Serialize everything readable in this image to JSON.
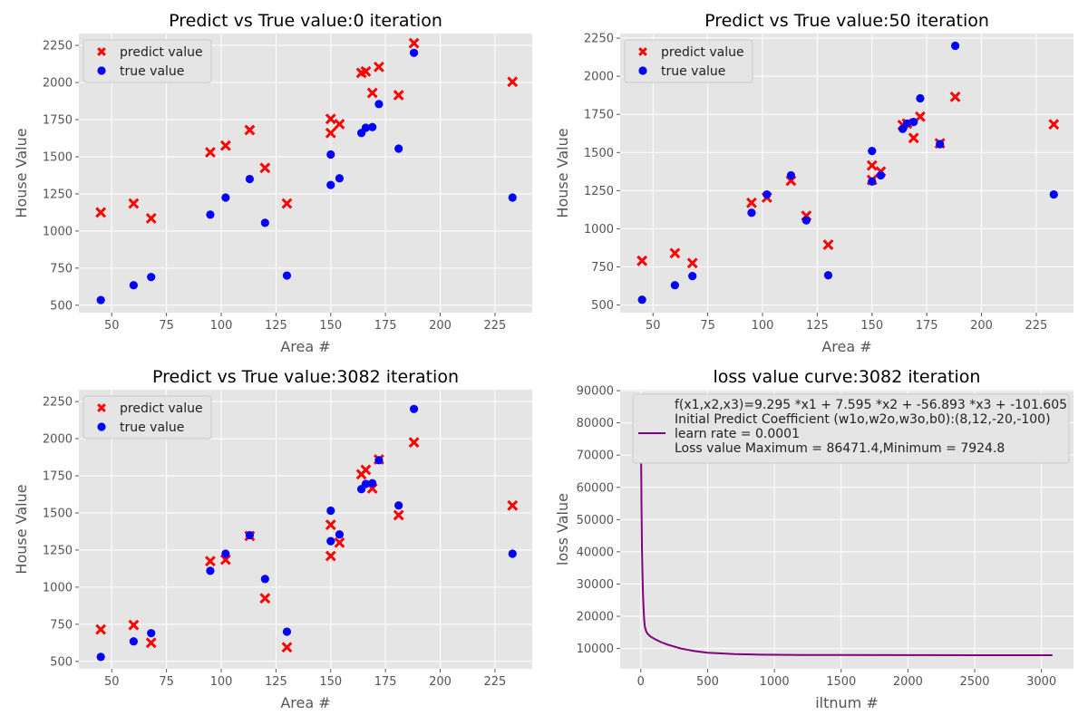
{
  "colors": {
    "predict": "#ff0000",
    "true": "#0000ff",
    "loss": "#800080",
    "background": "#e5e5e5",
    "grid": "#ffffff"
  },
  "chart_data": [
    {
      "type": "scatter",
      "title": "Predict vs True value:0 iteration",
      "xlabel": "Area #",
      "ylabel": "House Value",
      "xlim": [
        35,
        242
      ],
      "ylim": [
        450,
        2330
      ],
      "xticks": [
        50,
        75,
        100,
        125,
        150,
        175,
        200,
        225
      ],
      "yticks": [
        500,
        750,
        1000,
        1250,
        1500,
        1750,
        2000,
        2250
      ],
      "ytick_labels": [
        "500",
        "750",
        "1000",
        "1250",
        "1500",
        "1750",
        "2000",
        "2250"
      ],
      "grid": true,
      "legend_position": "upper-left",
      "series": [
        {
          "name": "predict value",
          "marker": "x",
          "color": "#ff0000",
          "points": [
            [
              45,
              1125
            ],
            [
              60,
              1185
            ],
            [
              68,
              1085
            ],
            [
              95,
              1530
            ],
            [
              102,
              1575
            ],
            [
              113,
              1680
            ],
            [
              120,
              1425
            ],
            [
              130,
              1185
            ],
            [
              150,
              1660
            ],
            [
              150,
              1755
            ],
            [
              154,
              1720
            ],
            [
              164,
              2065
            ],
            [
              166,
              2075
            ],
            [
              169,
              1930
            ],
            [
              172,
              2105
            ],
            [
              181,
              1915
            ],
            [
              188,
              2265
            ],
            [
              233,
              2005
            ]
          ]
        },
        {
          "name": "true value",
          "marker": "o",
          "color": "#0000ff",
          "points": [
            [
              45,
              535
            ],
            [
              60,
              635
            ],
            [
              68,
              690
            ],
            [
              95,
              1110
            ],
            [
              102,
              1225
            ],
            [
              113,
              1350
            ],
            [
              120,
              1055
            ],
            [
              130,
              700
            ],
            [
              150,
              1310
            ],
            [
              150,
              1515
            ],
            [
              154,
              1355
            ],
            [
              164,
              1660
            ],
            [
              166,
              1695
            ],
            [
              169,
              1700
            ],
            [
              172,
              1855
            ],
            [
              181,
              1555
            ],
            [
              188,
              2200
            ],
            [
              233,
              1225
            ]
          ]
        }
      ]
    },
    {
      "type": "scatter",
      "title": "Predict vs True value:50 iteration",
      "xlabel": "Area #",
      "ylabel": "House Value",
      "xlim": [
        35,
        242
      ],
      "ylim": [
        450,
        2280
      ],
      "xticks": [
        50,
        75,
        100,
        125,
        150,
        175,
        200,
        225
      ],
      "yticks": [
        500,
        750,
        1000,
        1250,
        1500,
        1750,
        2000,
        2250
      ],
      "ytick_labels": [
        "500",
        "750",
        "1000",
        "1250",
        "1500",
        "1750",
        "2000",
        "2250"
      ],
      "grid": true,
      "legend_position": "upper-left",
      "series": [
        {
          "name": "predict value",
          "marker": "x",
          "color": "#ff0000",
          "points": [
            [
              45,
              790
            ],
            [
              60,
              840
            ],
            [
              68,
              775
            ],
            [
              95,
              1170
            ],
            [
              102,
              1205
            ],
            [
              113,
              1315
            ],
            [
              120,
              1085
            ],
            [
              130,
              895
            ],
            [
              150,
              1320
            ],
            [
              150,
              1415
            ],
            [
              154,
              1375
            ],
            [
              164,
              1680
            ],
            [
              166,
              1690
            ],
            [
              169,
              1595
            ],
            [
              172,
              1735
            ],
            [
              181,
              1560
            ],
            [
              188,
              1865
            ],
            [
              233,
              1685
            ]
          ]
        },
        {
          "name": "true value",
          "marker": "o",
          "color": "#0000ff",
          "points": [
            [
              45,
              535
            ],
            [
              60,
              630
            ],
            [
              68,
              690
            ],
            [
              95,
              1105
            ],
            [
              102,
              1225
            ],
            [
              113,
              1350
            ],
            [
              120,
              1055
            ],
            [
              130,
              695
            ],
            [
              150,
              1310
            ],
            [
              150,
              1510
            ],
            [
              154,
              1350
            ],
            [
              164,
              1655
            ],
            [
              166,
              1690
            ],
            [
              169,
              1700
            ],
            [
              172,
              1855
            ],
            [
              181,
              1555
            ],
            [
              188,
              2200
            ],
            [
              233,
              1225
            ]
          ]
        }
      ]
    },
    {
      "type": "scatter",
      "title": "Predict vs True value:3082 iteration",
      "xlabel": "Area #",
      "ylabel": "House Value",
      "xlim": [
        35,
        242
      ],
      "ylim": [
        450,
        2330
      ],
      "xticks": [
        50,
        75,
        100,
        125,
        150,
        175,
        200,
        225
      ],
      "yticks": [
        500,
        750,
        1000,
        1250,
        1500,
        1750,
        2000,
        2250
      ],
      "ytick_labels": [
        "500",
        "750",
        "1000",
        "1250",
        "1500",
        "1750",
        "2000",
        "2250"
      ],
      "grid": true,
      "legend_position": "upper-left",
      "series": [
        {
          "name": "predict value",
          "marker": "x",
          "color": "#ff0000",
          "points": [
            [
              45,
              715
            ],
            [
              60,
              745
            ],
            [
              68,
              625
            ],
            [
              95,
              1175
            ],
            [
              102,
              1185
            ],
            [
              113,
              1345
            ],
            [
              120,
              925
            ],
            [
              130,
              595
            ],
            [
              150,
              1210
            ],
            [
              150,
              1420
            ],
            [
              154,
              1300
            ],
            [
              164,
              1760
            ],
            [
              166,
              1790
            ],
            [
              169,
              1665
            ],
            [
              172,
              1860
            ],
            [
              181,
              1485
            ],
            [
              188,
              1975
            ],
            [
              233,
              1550
            ]
          ]
        },
        {
          "name": "true value",
          "marker": "o",
          "color": "#0000ff",
          "points": [
            [
              45,
              530
            ],
            [
              60,
              635
            ],
            [
              68,
              690
            ],
            [
              95,
              1110
            ],
            [
              102,
              1225
            ],
            [
              113,
              1350
            ],
            [
              120,
              1055
            ],
            [
              130,
              700
            ],
            [
              150,
              1310
            ],
            [
              150,
              1515
            ],
            [
              154,
              1355
            ],
            [
              164,
              1660
            ],
            [
              166,
              1695
            ],
            [
              169,
              1700
            ],
            [
              172,
              1855
            ],
            [
              181,
              1550
            ],
            [
              188,
              2200
            ],
            [
              233,
              1225
            ]
          ]
        }
      ]
    },
    {
      "type": "line",
      "title": "loss value curve:3082 iteration",
      "xlabel": "iltnum #",
      "ylabel": "loss Value",
      "xlim": [
        -155,
        3240
      ],
      "ylim": [
        3700,
        90300
      ],
      "xticks": [
        0,
        500,
        1000,
        1500,
        2000,
        2500,
        3000
      ],
      "yticks": [
        10000,
        20000,
        30000,
        40000,
        50000,
        60000,
        70000,
        80000,
        90000
      ],
      "ytick_labels": [
        "10000",
        "20000",
        "30000",
        "40000",
        "50000",
        "60000",
        "70000",
        "80000",
        "90000"
      ],
      "grid": true,
      "legend_position": "upper-right",
      "series": [
        {
          "name": "f(x1,x2,x3)=9.295 *x1 + 7.595 *x2 + -56.893 *x3 + -101.605",
          "color": "#800080",
          "x": [
            0,
            2,
            5,
            8,
            12,
            16,
            20,
            25,
            30,
            40,
            50,
            70,
            100,
            150,
            200,
            300,
            400,
            500,
            700,
            900,
            1200,
            1500,
            2000,
            2500,
            3082
          ],
          "y": [
            86471.4,
            70000,
            52000,
            42000,
            33000,
            27000,
            22500,
            19000,
            16800,
            15300,
            14600,
            13800,
            13000,
            12000,
            11200,
            10000,
            9200,
            8700,
            8250,
            8080,
            7990,
            7960,
            7940,
            7930,
            7924.8
          ]
        }
      ],
      "legend_extra": [
        "Initial Predict Coefficient (w1o,w2o,w3o,b0):(8,12,-20,-100)",
        "learn rate = 0.0001",
        "Loss value Maximum = 86471.4,Minimum = 7924.8"
      ]
    }
  ]
}
